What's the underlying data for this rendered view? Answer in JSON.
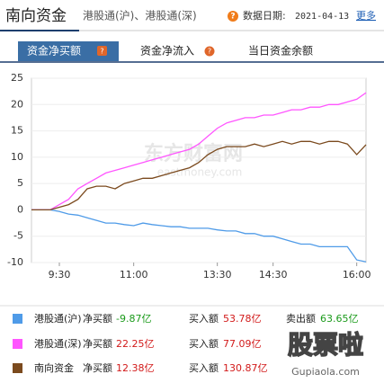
{
  "header": {
    "title": "南向资金",
    "subtitle": "港股通(沪)、港股通(深)",
    "date_label": "数据日期:",
    "date": "2021-04-13",
    "more": "更多"
  },
  "tabs": [
    "资金净买额",
    "资金净流入",
    "当日资金余额"
  ],
  "chart_data": {
    "type": "line",
    "categories": [
      null,
      null,
      null,
      "9:30",
      null,
      null,
      null,
      null,
      null,
      null,
      null,
      "11:00",
      null,
      null,
      null,
      null,
      null,
      null,
      null,
      null,
      "13:30",
      null,
      null,
      null,
      null,
      null,
      "14:30",
      null,
      null,
      null,
      null,
      null,
      null,
      null,
      null,
      "16:00",
      null
    ],
    "series": [
      {
        "name": "港股通(沪)",
        "color": "#4f9be8",
        "values": [
          0,
          0,
          0,
          -0.3,
          -0.8,
          -1,
          -1.5,
          -2,
          -2.5,
          -2.5,
          -2.8,
          -3,
          -2.5,
          -2.8,
          -3,
          -3.2,
          -3.2,
          -3.5,
          -3.5,
          -3.5,
          -3.8,
          -4,
          -4,
          -4.5,
          -4.5,
          -5,
          -5,
          -5.5,
          -6,
          -6.5,
          -6.5,
          -7,
          -7,
          -7,
          -7,
          -9.5,
          -9.87
        ]
      },
      {
        "name": "港股通(深)",
        "color": "#ff55ff",
        "values": [
          0,
          0,
          0,
          1,
          2,
          4,
          5,
          6,
          7,
          7.5,
          8,
          8.5,
          9,
          9.5,
          10,
          10.5,
          11,
          11.5,
          12.5,
          14,
          15.5,
          16.5,
          17,
          17.5,
          17.5,
          18,
          18,
          18.5,
          19,
          19,
          19.5,
          19.5,
          20,
          20,
          20.5,
          21,
          22.25
        ]
      },
      {
        "name": "南向资金",
        "color": "#7b4a1e",
        "values": [
          0,
          0,
          0,
          0.5,
          1,
          2,
          4,
          4.5,
          4.5,
          4,
          5,
          5.5,
          6,
          6,
          6.5,
          7,
          7.5,
          8,
          9,
          10.5,
          11.5,
          12,
          12,
          12,
          12.5,
          12,
          12.5,
          13,
          12.5,
          13,
          13,
          12.5,
          13,
          13,
          12.5,
          10.5,
          12.38
        ]
      }
    ],
    "ylim": [
      -10,
      25
    ],
    "yticks": [
      25,
      20,
      15,
      10,
      5,
      0,
      -5,
      -10
    ],
    "grid": true,
    "watermark": "东方财富网",
    "watermark_sub": "eastmoney.com"
  },
  "summary": {
    "rows": [
      {
        "net_label": "净买额",
        "net": "-9.87亿",
        "buy_label": "买入额",
        "buy": "53.78亿",
        "sell_label": "卖出额",
        "sell": "63.65亿"
      },
      {
        "net_label": "净买额",
        "net": "22.25亿",
        "buy_label": "买入额",
        "buy": "77.09亿"
      },
      {
        "net_label": "净买额",
        "net": "12.38亿",
        "buy_label": "买入额",
        "buy": "130.87亿"
      }
    ]
  },
  "footer_watermark": {
    "title": "股票啦",
    "site": "Gupiaola.com"
  }
}
